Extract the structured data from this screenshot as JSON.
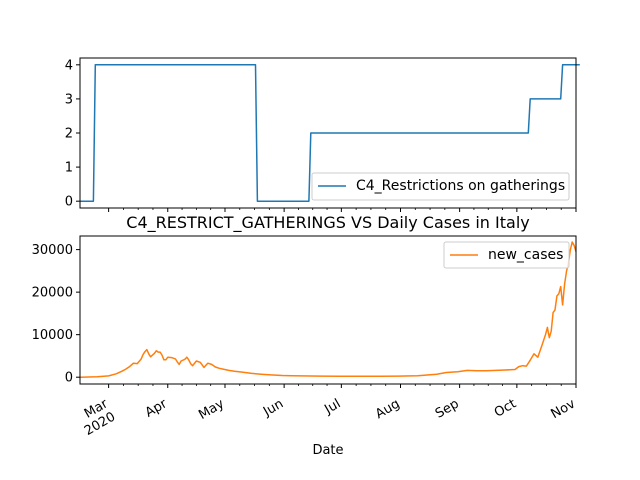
{
  "chart_data": [
    {
      "type": "line",
      "title": "",
      "xlabel": "",
      "ylabel": "",
      "ylim": [
        -0.2,
        4.2
      ],
      "yticks": [
        "0",
        "1",
        "2",
        "3",
        "4"
      ],
      "legend": "lower-right",
      "series": [
        {
          "name": "C4_Restrictions on gatherings",
          "color": "#1f77b4",
          "points": [
            [
              "2020-02-15",
              0
            ],
            [
              "2020-02-22",
              0
            ],
            [
              "2020-02-23",
              4
            ],
            [
              "2020-05-17",
              4
            ],
            [
              "2020-05-18",
              0
            ],
            [
              "2020-06-14",
              0
            ],
            [
              "2020-06-15",
              2
            ],
            [
              "2020-10-07",
              2
            ],
            [
              "2020-10-08",
              3
            ],
            [
              "2020-10-24",
              3
            ],
            [
              "2020-10-25",
              4
            ],
            [
              "2020-11-03",
              4
            ]
          ]
        }
      ]
    },
    {
      "type": "line",
      "title": "C4_RESTRICT_GATHERINGS VS Daily Cases in Italy",
      "xlabel": "Date",
      "ylabel": "",
      "ylim": [
        -1600,
        33200
      ],
      "yticks": [
        "0",
        "10000",
        "20000",
        "30000"
      ],
      "legend": "top-right",
      "xticks": [
        "Mar\n2020",
        "Apr",
        "May",
        "Jun",
        "Jul",
        "Aug",
        "Sep",
        "Oct",
        "Nov"
      ],
      "series": [
        {
          "name": "new_cases",
          "color": "#ff7f0e",
          "points": [
            [
              "2020-02-15",
              0
            ],
            [
              "2020-02-24",
              100
            ],
            [
              "2020-03-01",
              300
            ],
            [
              "2020-03-05",
              800
            ],
            [
              "2020-03-08",
              1400
            ],
            [
              "2020-03-10",
              1900
            ],
            [
              "2020-03-12",
              2500
            ],
            [
              "2020-03-14",
              3300
            ],
            [
              "2020-03-16",
              3200
            ],
            [
              "2020-03-18",
              4200
            ],
            [
              "2020-03-19",
              5300
            ],
            [
              "2020-03-20",
              6000
            ],
            [
              "2020-03-21",
              6500
            ],
            [
              "2020-03-22",
              5500
            ],
            [
              "2020-03-23",
              4800
            ],
            [
              "2020-03-24",
              5200
            ],
            [
              "2020-03-25",
              5600
            ],
            [
              "2020-03-26",
              6200
            ],
            [
              "2020-03-27",
              5900
            ],
            [
              "2020-03-28",
              5900
            ],
            [
              "2020-03-29",
              5200
            ],
            [
              "2020-03-30",
              4100
            ],
            [
              "2020-03-31",
              4100
            ],
            [
              "2020-04-01",
              4700
            ],
            [
              "2020-04-03",
              4600
            ],
            [
              "2020-04-05",
              4300
            ],
            [
              "2020-04-06",
              3600
            ],
            [
              "2020-04-07",
              3000
            ],
            [
              "2020-04-08",
              3800
            ],
            [
              "2020-04-10",
              4200
            ],
            [
              "2020-04-11",
              4700
            ],
            [
              "2020-04-12",
              4100
            ],
            [
              "2020-04-13",
              3200
            ],
            [
              "2020-04-14",
              2700
            ],
            [
              "2020-04-16",
              3800
            ],
            [
              "2020-04-18",
              3500
            ],
            [
              "2020-04-20",
              2300
            ],
            [
              "2020-04-22",
              3300
            ],
            [
              "2020-04-24",
              3000
            ],
            [
              "2020-04-26",
              2400
            ],
            [
              "2020-04-28",
              2100
            ],
            [
              "2020-04-30",
              1900
            ],
            [
              "2020-05-03",
              1600
            ],
            [
              "2020-05-06",
              1400
            ],
            [
              "2020-05-10",
              1200
            ],
            [
              "2020-05-15",
              900
            ],
            [
              "2020-05-20",
              700
            ],
            [
              "2020-05-25",
              550
            ],
            [
              "2020-05-31",
              400
            ],
            [
              "2020-06-05",
              350
            ],
            [
              "2020-06-10",
              300
            ],
            [
              "2020-06-20",
              250
            ],
            [
              "2020-06-30",
              200
            ],
            [
              "2020-07-15",
              200
            ],
            [
              "2020-07-31",
              250
            ],
            [
              "2020-08-10",
              350
            ],
            [
              "2020-08-20",
              700
            ],
            [
              "2020-08-25",
              1100
            ],
            [
              "2020-08-31",
              1300
            ],
            [
              "2020-09-05",
              1600
            ],
            [
              "2020-09-10",
              1500
            ],
            [
              "2020-09-15",
              1500
            ],
            [
              "2020-09-20",
              1600
            ],
            [
              "2020-09-25",
              1700
            ],
            [
              "2020-09-30",
              1800
            ],
            [
              "2020-10-02",
              2500
            ],
            [
              "2020-10-04",
              2700
            ],
            [
              "2020-10-06",
              2600
            ],
            [
              "2020-10-08",
              4000
            ],
            [
              "2020-10-10",
              5500
            ],
            [
              "2020-10-12",
              4700
            ],
            [
              "2020-10-14",
              7300
            ],
            [
              "2020-10-16",
              10000
            ],
            [
              "2020-10-17",
              11700
            ],
            [
              "2020-10-18",
              9300
            ],
            [
              "2020-10-19",
              10800
            ],
            [
              "2020-10-20",
              15200
            ],
            [
              "2020-10-21",
              15800
            ],
            [
              "2020-10-22",
              19100
            ],
            [
              "2020-10-23",
              19600
            ],
            [
              "2020-10-24",
              21300
            ],
            [
              "2020-10-25",
              17000
            ],
            [
              "2020-10-26",
              21900
            ],
            [
              "2020-10-27",
              24900
            ],
            [
              "2020-10-28",
              26800
            ],
            [
              "2020-10-29",
              29900
            ],
            [
              "2020-10-30",
              31800
            ],
            [
              "2020-10-31",
              31000
            ],
            [
              "2020-11-01",
              29500
            ]
          ]
        }
      ]
    }
  ]
}
